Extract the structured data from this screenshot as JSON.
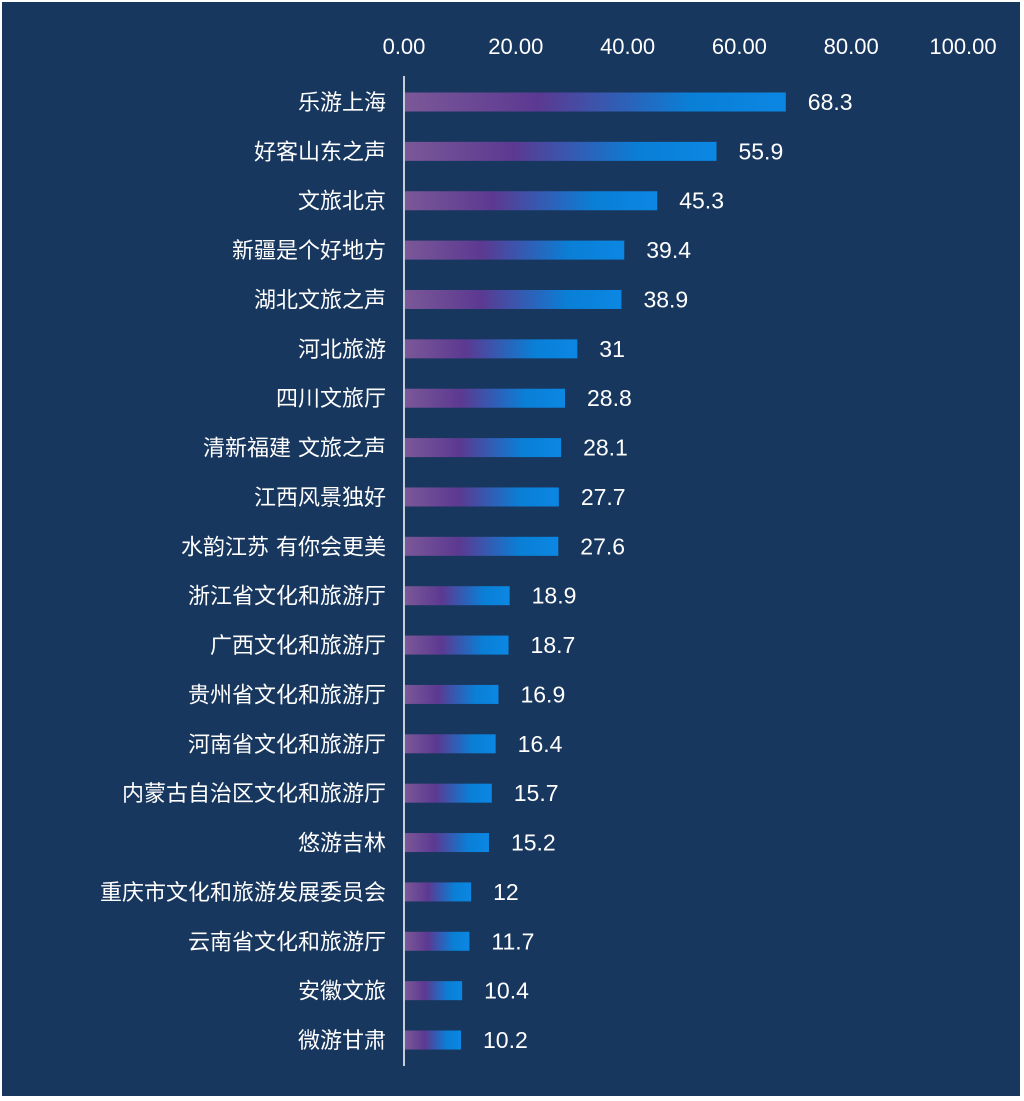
{
  "chart_data": {
    "type": "bar",
    "orientation": "horizontal",
    "title": "",
    "xlabel": "",
    "ylabel": "",
    "xlim": [
      0,
      100
    ],
    "x_ticks": [
      "0.00",
      "20.00",
      "40.00",
      "60.00",
      "80.00",
      "100.00"
    ],
    "x_tick_values": [
      0,
      20,
      40,
      60,
      80,
      100
    ],
    "x_axis_position": "top",
    "grid": false,
    "legend": "none",
    "categories": [
      "乐游上海",
      "好客山东之声",
      "文旅北京",
      "新疆是个好地方",
      "湖北文旅之声",
      "河北旅游",
      "四川文旅厅",
      "清新福建 文旅之声",
      "江西风景独好",
      "水韵江苏 有你会更美",
      "浙江省文化和旅游厅",
      "广西文化和旅游厅",
      "贵州省文化和旅游厅",
      "河南省文化和旅游厅",
      "内蒙古自治区文化和旅游厅",
      "悠游吉林",
      "重庆市文化和旅游发展委员会",
      "云南省文化和旅游厅",
      "安徽文旅",
      "微游甘肃"
    ],
    "values": [
      68.3,
      55.9,
      45.3,
      39.4,
      38.9,
      31,
      28.8,
      28.1,
      27.7,
      27.6,
      18.9,
      18.7,
      16.9,
      16.4,
      15.7,
      15.2,
      12,
      11.7,
      10.4,
      10.2
    ],
    "value_labels": [
      "68.3",
      "55.9",
      "45.3",
      "39.4",
      "38.9",
      "31",
      "28.8",
      "28.1",
      "27.7",
      "27.6",
      "18.9",
      "18.7",
      "16.9",
      "16.4",
      "15.7",
      "15.2",
      "12",
      "11.7",
      "10.4",
      "10.2"
    ]
  },
  "colors": {
    "background": "#18375e",
    "outer_border": "#ffffff",
    "axis_line": "#ffffff",
    "text": "#ffffff",
    "bar_gradient": [
      "#7b5898",
      "#5c3991",
      "#0a7fd6",
      "#0b87e3"
    ]
  }
}
